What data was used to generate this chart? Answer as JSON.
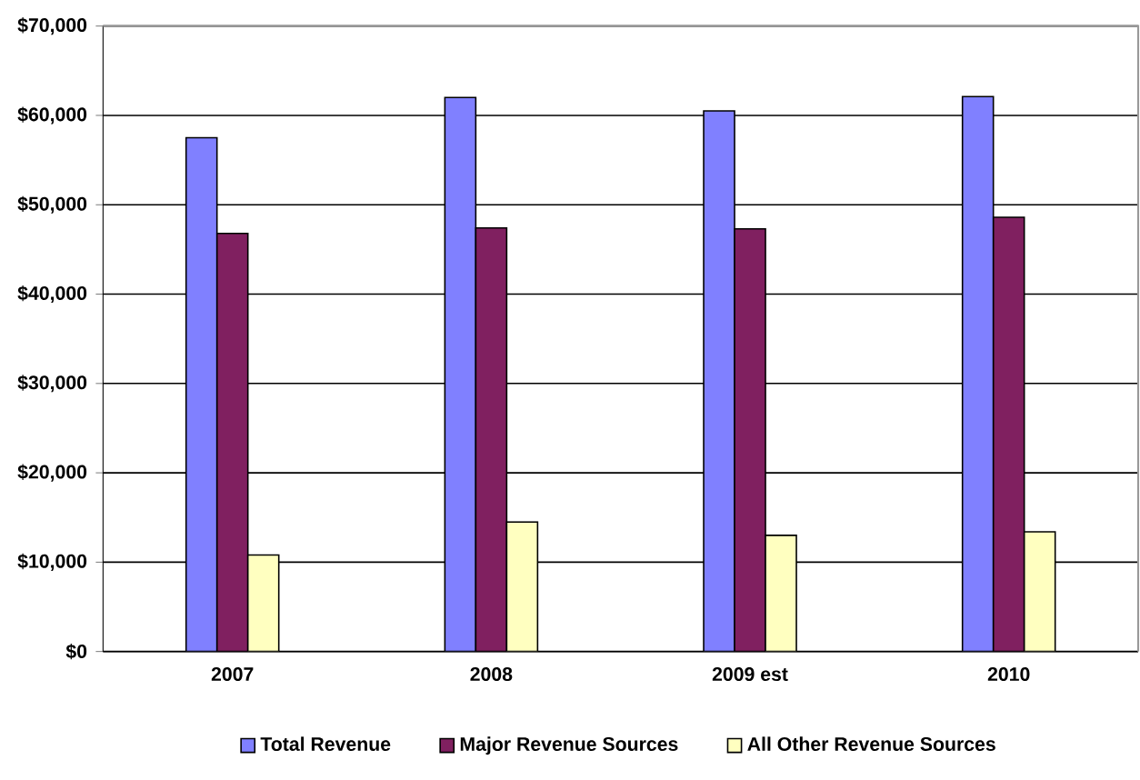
{
  "chart_data": {
    "type": "bar",
    "categories": [
      "2007",
      "2008",
      "2009 est",
      "2010"
    ],
    "series": [
      {
        "name": "Total Revenue",
        "color": "#8080ff",
        "values": [
          57500,
          62000,
          60500,
          62100
        ]
      },
      {
        "name": "Major Revenue Sources",
        "color": "#802060",
        "values": [
          46800,
          47400,
          47300,
          48600
        ]
      },
      {
        "name": "All Other Revenue Sources",
        "color": "#ffffc0",
        "values": [
          10800,
          14500,
          13000,
          13400
        ]
      }
    ],
    "ylim": [
      0,
      70000
    ],
    "yticks": [
      {
        "value": 0,
        "label": "$0"
      },
      {
        "value": 10000,
        "label": "$10,000"
      },
      {
        "value": 20000,
        "label": "$20,000"
      },
      {
        "value": 30000,
        "label": "$30,000"
      },
      {
        "value": 40000,
        "label": "$40,000"
      },
      {
        "value": 50000,
        "label": "$50,000"
      },
      {
        "value": 60000,
        "label": "$60,000"
      },
      {
        "value": 70000,
        "label": "$70,000"
      }
    ],
    "grid": "y",
    "legend": "bottom"
  }
}
